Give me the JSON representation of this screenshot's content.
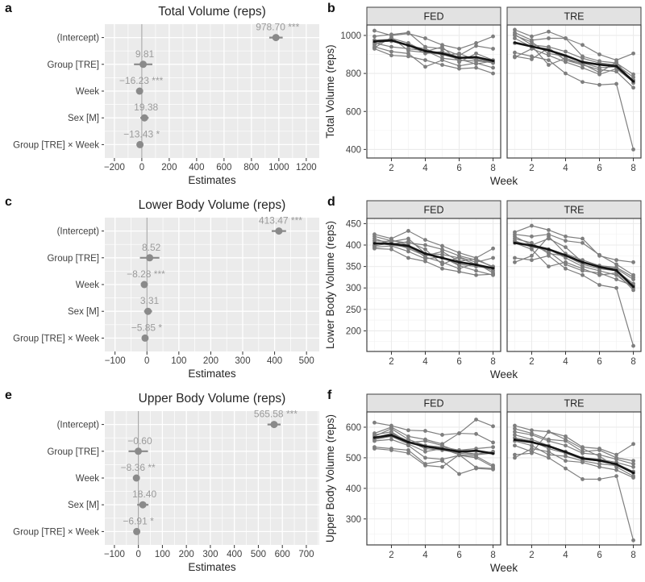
{
  "colors": {
    "forest_panel_bg": "#EBEBEB",
    "grid_white": "#FFFFFF",
    "zero_line": "#9A9A9A",
    "point_gray": "#8A8A8A",
    "estimate_label": "#9B9B9B",
    "axis_text": "#404040",
    "title_text": "#262626",
    "lines_panel_bg": "#FFFFFF",
    "lines_grid": "#EBEBEB",
    "lines_grid_minor": "#F3F3F3",
    "panel_border": "#3F3F3F",
    "strip_bg": "#E2E2E2",
    "subject_line": "#7E7E7E",
    "mean_line": "#141414"
  },
  "chart_data": {
    "panels": [
      {
        "letter": "a",
        "kind": "forest",
        "type": "scatter",
        "title": "Total Volume (reps)",
        "xlabel": "Estimates",
        "xticks": [
          -200,
          0,
          200,
          400,
          600,
          800,
          1000,
          1200
        ],
        "xdomain": [
          -270,
          1295
        ],
        "rows": [
          {
            "term": "(Intercept)",
            "label": "978.70 ***",
            "estimate": 978.7,
            "ci": [
              930,
              1028
            ]
          },
          {
            "term": "Group [TRE]",
            "label": "9.81",
            "estimate": 9.81,
            "ci": [
              -57,
              77
            ]
          },
          {
            "term": "Week",
            "label": "−16.23 ***",
            "estimate": -16.23,
            "ci": [
              -25,
              -8
            ]
          },
          {
            "term": "Sex [M]",
            "label": "19.38",
            "estimate": 19.38,
            "ci": [
              -11,
              50
            ]
          },
          {
            "term": "Group [TRE] × Week",
            "label": "−13.43 *",
            "estimate": -13.43,
            "ci": [
              -25,
              -2
            ]
          }
        ]
      },
      {
        "letter": "b",
        "kind": "lines",
        "type": "line",
        "ylabel": "Total Volume (reps)",
        "xlabel": "Week",
        "weeks": [
          1,
          2,
          3,
          4,
          5,
          6,
          7,
          8
        ],
        "xticks": [
          2,
          4,
          6,
          8
        ],
        "yticks": [
          400,
          600,
          800,
          1000
        ],
        "ydomain": [
          355,
          1055
        ],
        "facets": [
          {
            "name": "FED",
            "subjects": [
              [
                1025,
                1000,
                1010,
                985,
                950,
                930,
                960,
                995
              ],
              [
                995,
                1005,
                1015,
                940,
                930,
                895,
                945,
                930
              ],
              [
                950,
                985,
                960,
                915,
                940,
                860,
                905,
                870
              ],
              [
                935,
                990,
                920,
                910,
                900,
                875,
                850,
                865
              ],
              [
                960,
                940,
                930,
                920,
                880,
                870,
                865,
                860
              ],
              [
                940,
                915,
                905,
                835,
                870,
                840,
                855,
                830
              ],
              [
                930,
                895,
                890,
                870,
                845,
                825,
                830,
                800
              ],
              [
                965,
                970,
                950,
                905,
                915,
                885,
                875,
                860
              ],
              [
                975,
                980,
                945,
                930,
                895,
                905,
                870,
                855
              ]
            ],
            "mean": [
              968,
              974,
              948,
              918,
              905,
              882,
              886,
              866
            ]
          },
          {
            "name": "TRE",
            "subjects": [
              [
                1030,
                995,
                1020,
                985,
                950,
                900,
                870,
                905
              ],
              [
                1015,
                975,
                985,
                985,
                890,
                865,
                855,
                795
              ],
              [
                1005,
                950,
                940,
                915,
                880,
                855,
                845,
                780
              ],
              [
                1000,
                965,
                905,
                890,
                860,
                850,
                840,
                765
              ],
              [
                985,
                940,
                930,
                870,
                855,
                830,
                835,
                760
              ],
              [
                960,
                945,
                845,
                880,
                850,
                805,
                860,
                750
              ],
              [
                910,
                890,
                870,
                800,
                755,
                740,
                745,
                400
              ],
              [
                890,
                875,
                935,
                870,
                845,
                820,
                810,
                725
              ],
              [
                885,
                930,
                895,
                860,
                830,
                795,
                825,
                755
              ]
            ],
            "mean": [
              962,
              942,
              922,
              894,
              860,
              846,
              838,
              758
            ]
          }
        ]
      },
      {
        "letter": "c",
        "kind": "forest",
        "type": "scatter",
        "title": "Lower Body Volume (reps)",
        "xlabel": "Estimates",
        "xticks": [
          -100,
          0,
          100,
          200,
          300,
          400,
          500
        ],
        "xdomain": [
          -132,
          540
        ],
        "rows": [
          {
            "term": "(Intercept)",
            "label": "413.47 ***",
            "estimate": 413.47,
            "ci": [
              391,
              436
            ]
          },
          {
            "term": "Group [TRE]",
            "label": "8.52",
            "estimate": 8.52,
            "ci": [
              -22,
              39
            ]
          },
          {
            "term": "Week",
            "label": "−8.28 ***",
            "estimate": -8.28,
            "ci": [
              -13,
              -4
            ]
          },
          {
            "term": "Sex [M]",
            "label": "3.31",
            "estimate": 3.31,
            "ci": [
              -9,
              16
            ]
          },
          {
            "term": "Group [TRE] × Week",
            "label": "−5.85 *",
            "estimate": -5.85,
            "ci": [
              -11,
              -1
            ]
          }
        ]
      },
      {
        "letter": "d",
        "kind": "lines",
        "type": "line",
        "ylabel": "Lower Body Volume (reps)",
        "xlabel": "Week",
        "weeks": [
          1,
          2,
          3,
          4,
          5,
          6,
          7,
          8
        ],
        "xticks": [
          2,
          4,
          6,
          8
        ],
        "yticks": [
          200,
          250,
          300,
          350,
          400,
          450
        ],
        "ydomain": [
          152,
          462
        ],
        "facets": [
          {
            "name": "FED",
            "subjects": [
              [
                425,
                415,
                433,
                412,
                398,
                382,
                370,
                392
              ],
              [
                420,
                410,
                405,
                400,
                390,
                375,
                365,
                350
              ],
              [
                410,
                408,
                415,
                380,
                378,
                370,
                355,
                340
              ],
              [
                405,
                400,
                395,
                378,
                370,
                355,
                350,
                345
              ],
              [
                400,
                412,
                400,
                372,
                360,
                345,
                358,
                335
              ],
              [
                395,
                398,
                385,
                368,
                372,
                352,
                340,
                330
              ],
              [
                392,
                390,
                370,
                362,
                345,
                338,
                330,
                332
              ],
              [
                398,
                405,
                392,
                375,
                385,
                362,
                368,
                348
              ],
              [
                415,
                402,
                408,
                390,
                355,
                372,
                360,
                370
              ]
            ],
            "mean": [
              404,
              403,
              398,
              380,
              370,
              360,
              354,
              346
            ]
          },
          {
            "name": "TRE",
            "subjects": [
              [
                430,
                445,
                435,
                420,
                415,
                375,
                365,
                360
              ],
              [
                425,
                420,
                425,
                410,
                405,
                377,
                355,
                330
              ],
              [
                420,
                400,
                415,
                395,
                360,
                350,
                345,
                320
              ],
              [
                415,
                405,
                380,
                375,
                355,
                345,
                340,
                310
              ],
              [
                410,
                395,
                390,
                370,
                350,
                340,
                330,
                300
              ],
              [
                405,
                390,
                350,
                360,
                345,
                330,
                335,
                295
              ],
              [
                370,
                365,
                375,
                345,
                330,
                307,
                300,
                165
              ],
              [
                360,
                375,
                420,
                380,
                365,
                352,
                348,
                325
              ],
              [
                408,
                398,
                385,
                355,
                340,
                335,
                320,
                305
              ]
            ],
            "mean": [
              405,
              399,
              390,
              376,
              360,
              349,
              341,
              303
            ]
          }
        ]
      },
      {
        "letter": "e",
        "kind": "forest",
        "type": "scatter",
        "title": "Upper Body Volume (reps)",
        "xlabel": "Estimates",
        "xticks": [
          -100,
          0,
          100,
          200,
          300,
          400,
          500,
          600,
          700
        ],
        "xdomain": [
          -140,
          754
        ],
        "rows": [
          {
            "term": "(Intercept)",
            "label": "565.58 ***",
            "estimate": 565.58,
            "ci": [
              538,
              593
            ]
          },
          {
            "term": "Group [TRE]",
            "label": "−0.60",
            "estimate": -0.6,
            "ci": [
              -41,
              40
            ]
          },
          {
            "term": "Week",
            "label": "−8.36 **",
            "estimate": -8.36,
            "ci": [
              -14,
              -3
            ]
          },
          {
            "term": "Sex [M]",
            "label": "18.40",
            "estimate": 18.4,
            "ci": [
              -5,
              42
            ]
          },
          {
            "term": "Group [TRE] × Week",
            "label": "−6.91 *",
            "estimate": -6.91,
            "ci": [
              -13,
              -1
            ]
          }
        ]
      },
      {
        "letter": "f",
        "kind": "lines",
        "type": "line",
        "ylabel": "Upper Body Volume (reps)",
        "xlabel": "Week",
        "weeks": [
          1,
          2,
          3,
          4,
          5,
          6,
          7,
          8
        ],
        "xticks": [
          2,
          4,
          6,
          8
        ],
        "yticks": [
          300,
          400,
          500,
          600
        ],
        "ydomain": [
          215,
          650
        ],
        "facets": [
          {
            "name": "FED",
            "subjects": [
              [
                615,
                605,
                590,
                588,
                575,
                580,
                625,
                603
              ],
              [
                580,
                600,
                570,
                560,
                545,
                580,
                578,
                550
              ],
              [
                570,
                595,
                560,
                540,
                535,
                525,
                530,
                535
              ],
              [
                565,
                580,
                555,
                530,
                525,
                515,
                510,
                515
              ],
              [
                560,
                570,
                545,
                520,
                530,
                510,
                505,
                475
              ],
              [
                555,
                560,
                540,
                500,
                495,
                508,
                500,
                470
              ],
              [
                535,
                530,
                525,
                480,
                490,
                447,
                465,
                462
              ],
              [
                530,
                525,
                515,
                475,
                470,
                510,
                468,
                465
              ],
              [
                575,
                585,
                550,
                555,
                540,
                520,
                512,
                520
              ]
            ],
            "mean": [
              566,
              574,
              551,
              537,
              529,
              520,
              523,
              514
            ]
          },
          {
            "name": "TRE",
            "subjects": [
              [
                605,
                590,
                585,
                570,
                535,
                530,
                510,
                545
              ],
              [
                595,
                580,
                560,
                555,
                520,
                525,
                500,
                490
              ],
              [
                585,
                575,
                555,
                540,
                515,
                510,
                495,
                480
              ],
              [
                575,
                560,
                540,
                520,
                500,
                495,
                485,
                470
              ],
              [
                565,
                555,
                530,
                515,
                495,
                490,
                480,
                455
              ],
              [
                555,
                540,
                510,
                505,
                490,
                480,
                475,
                450
              ],
              [
                540,
                520,
                500,
                465,
                430,
                430,
                440,
                230
              ],
              [
                510,
                515,
                585,
                560,
                530,
                505,
                470,
                440
              ],
              [
                500,
                530,
                520,
                490,
                485,
                470,
                460,
                435
              ]
            ],
            "mean": [
              559,
              551,
              538,
              519,
              498,
              491,
              479,
              451
            ]
          }
        ]
      }
    ]
  }
}
